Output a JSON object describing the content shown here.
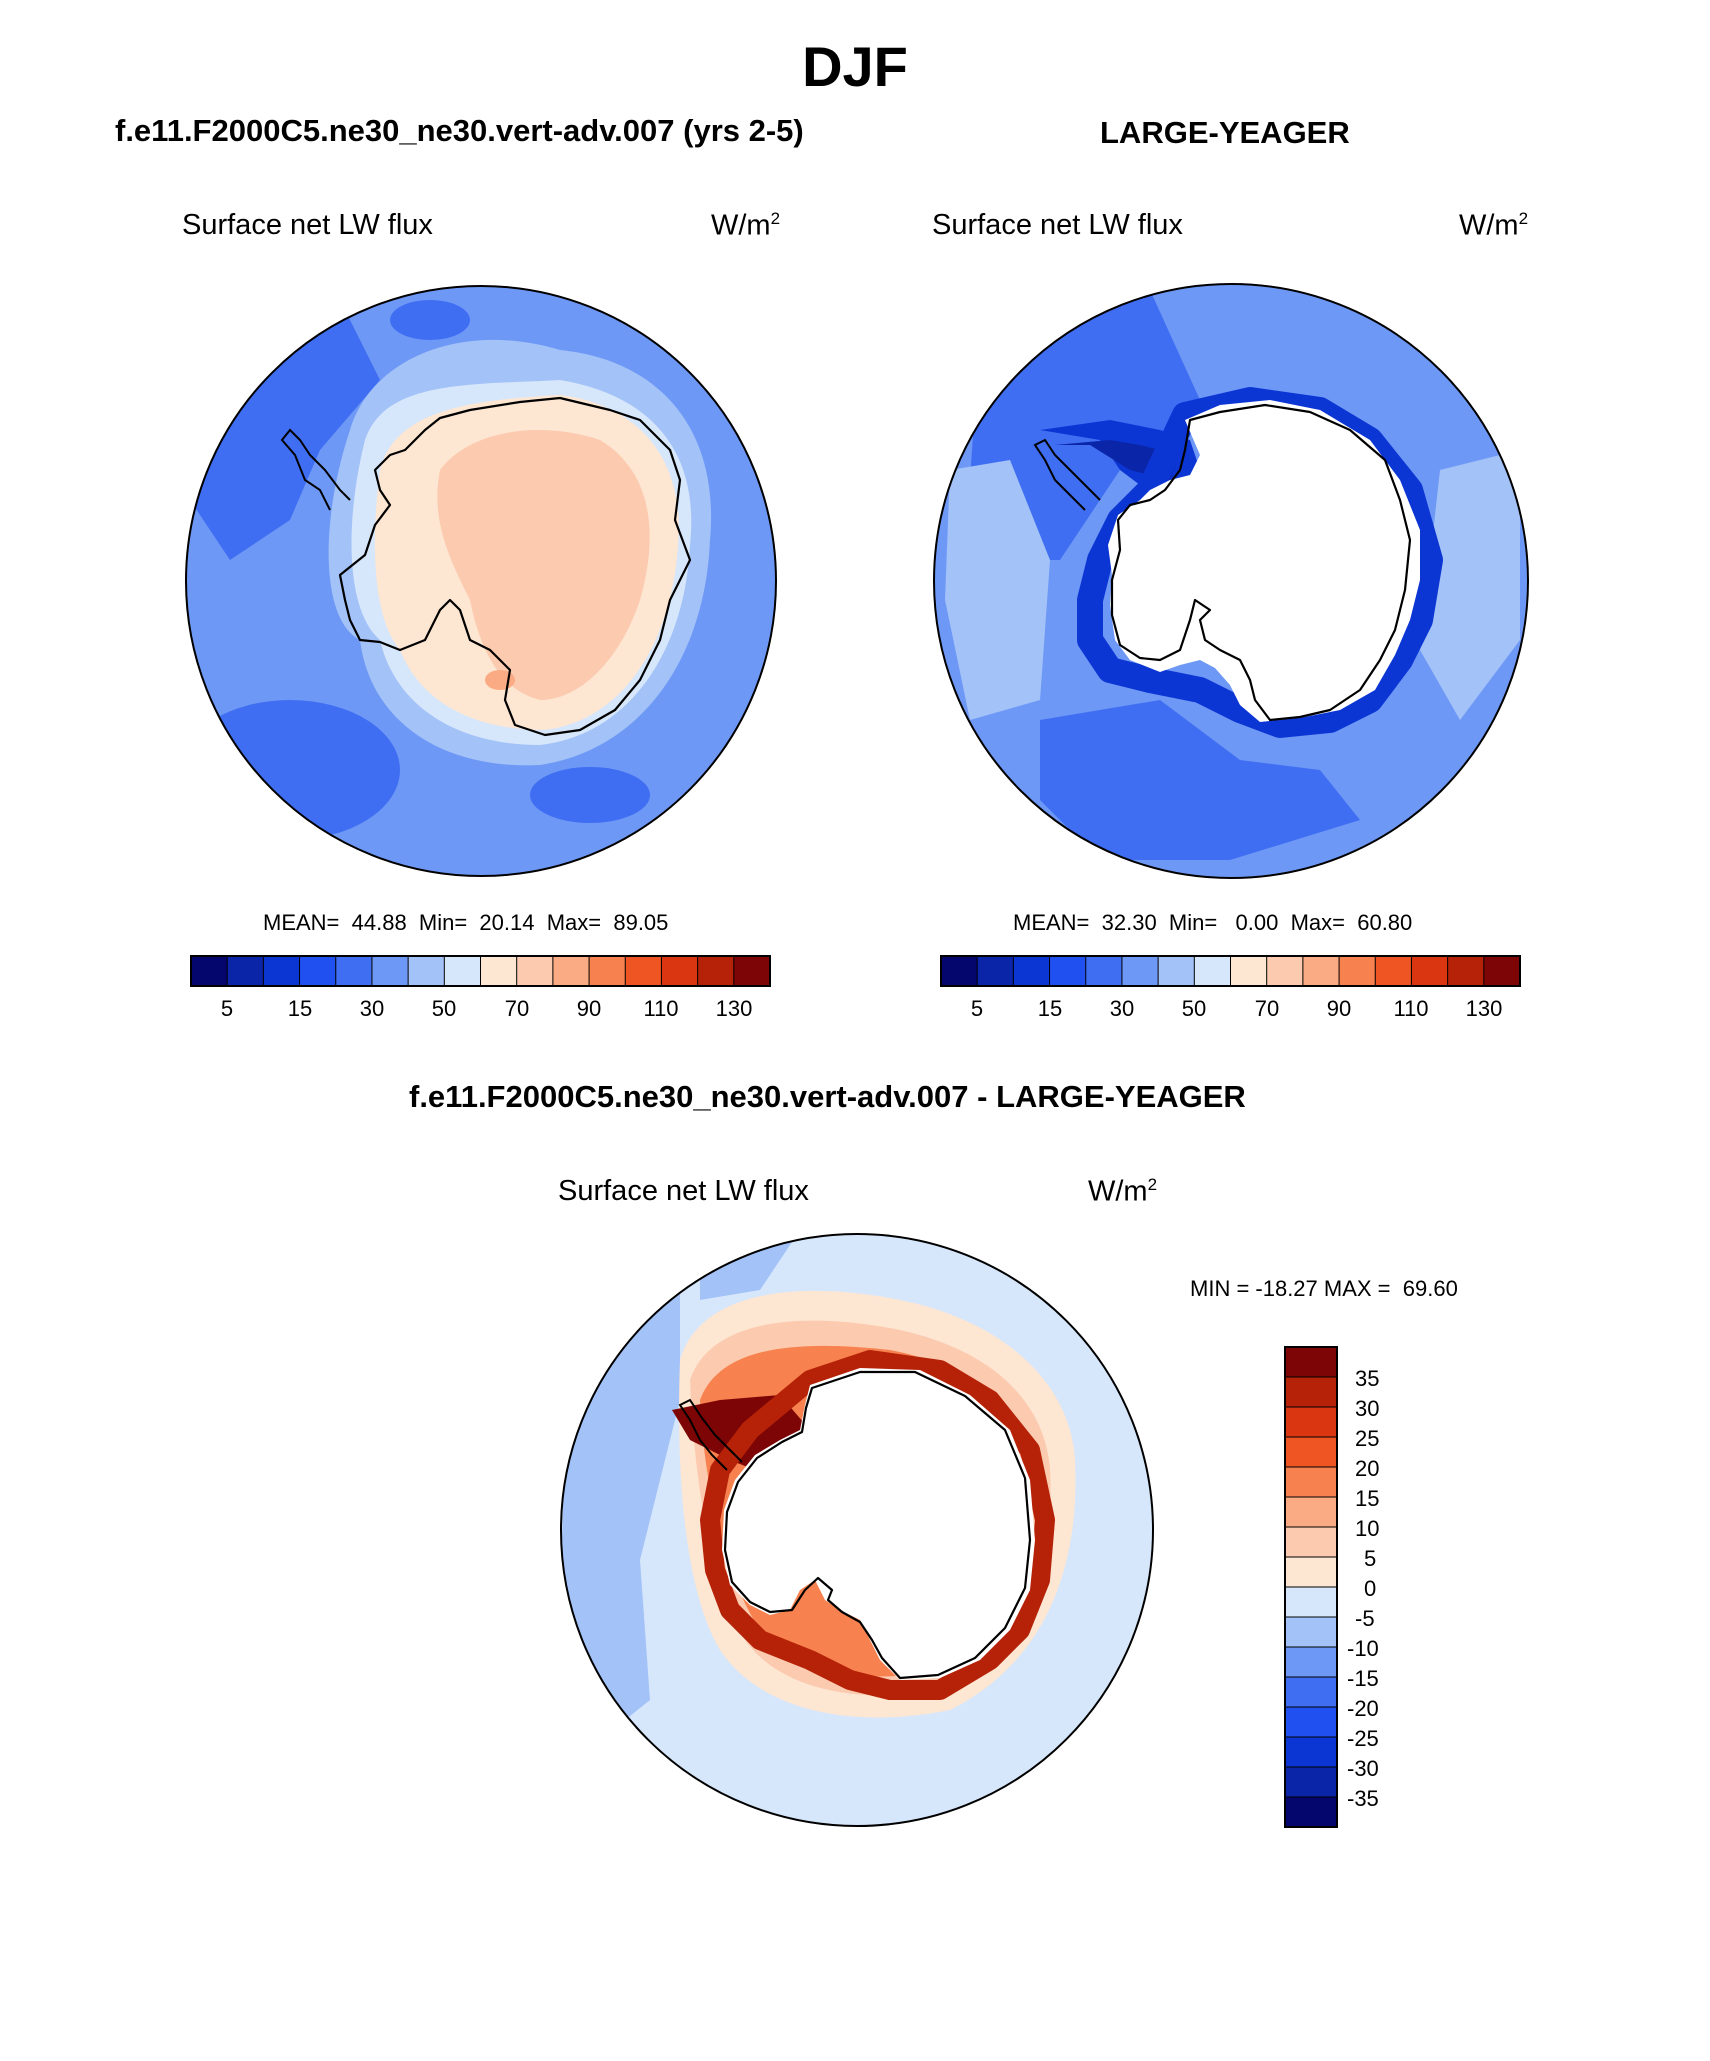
{
  "figure": {
    "title": "DJF",
    "panel_left_title": "f.e11.F2000C5.ne30_ne30.vert-adv.007 (yrs 2-5)",
    "panel_right_title": "LARGE-YEAGER",
    "diff_title": "f.e11.F2000C5.ne30_ne30.vert-adv.007 - LARGE-YEAGER"
  },
  "panels": [
    {
      "variable": "Surface net LW flux",
      "units": "W/m",
      "units_sup": "2",
      "stats_label": "MEAN=  44.88  Min=  20.14  Max=  89.05",
      "mean": 44.88,
      "min": 20.14,
      "max": 89.05
    },
    {
      "variable": "Surface net LW flux",
      "units": "W/m",
      "units_sup": "2",
      "stats_label": "MEAN=  32.30  Min=   0.00  Max=  60.80",
      "mean": 32.3,
      "min": 0.0,
      "max": 60.8
    },
    {
      "variable": "Surface net LW flux",
      "units": "W/m",
      "units_sup": "2",
      "stats_label": "MIN = -18.27 MAX =  69.60",
      "min": -18.27,
      "max": 69.6
    }
  ],
  "colorbar_main": {
    "colors": [
      "#05056e",
      "#0a25a8",
      "#0c36d4",
      "#2050f0",
      "#3f6ef2",
      "#6e98f5",
      "#a3c2f8",
      "#d7e7fb",
      "#fde6d2",
      "#fccaaf",
      "#fbab84",
      "#f8824f",
      "#ee5523",
      "#db3612",
      "#b52208",
      "#7e0505"
    ],
    "tick_labels": [
      "5",
      "15",
      "30",
      "50",
      "70",
      "90",
      "110",
      "130"
    ]
  },
  "colorbar_diff": {
    "colors_top_to_bottom": [
      "#7e0505",
      "#b52208",
      "#db3612",
      "#ee5523",
      "#f8824f",
      "#fbab84",
      "#fccaaf",
      "#fde6d2",
      "#d7e7fb",
      "#a3c2f8",
      "#6e98f5",
      "#3f6ef2",
      "#2050f0",
      "#0c36d4",
      "#0a25a8",
      "#05056e"
    ],
    "tick_labels": [
      "35",
      "30",
      "25",
      "20",
      "15",
      "10",
      "5",
      "0",
      "-5",
      "-10",
      "-15",
      "-20",
      "-25",
      "-30",
      "-35"
    ]
  },
  "chart_data": [
    {
      "type": "heatmap",
      "projection": "south-polar-stereographic",
      "title": "f.e11.F2000C5.ne30_ne30.vert-adv.007 (yrs 2-5)",
      "variable": "Surface net LW flux",
      "units": "W/m2",
      "levels": [
        5,
        10,
        15,
        20,
        30,
        40,
        50,
        60,
        70,
        80,
        90,
        100,
        110,
        120,
        130
      ],
      "stats": {
        "mean": 44.88,
        "min": 20.14,
        "max": 89.05
      }
    },
    {
      "type": "heatmap",
      "projection": "south-polar-stereographic",
      "title": "LARGE-YEAGER",
      "variable": "Surface net LW flux",
      "units": "W/m2",
      "levels": [
        5,
        10,
        15,
        20,
        30,
        40,
        50,
        60,
        70,
        80,
        90,
        100,
        110,
        120,
        130
      ],
      "stats": {
        "mean": 32.3,
        "min": 0.0,
        "max": 60.8
      }
    },
    {
      "type": "heatmap",
      "projection": "south-polar-stereographic",
      "title": "f.e11.F2000C5.ne30_ne30.vert-adv.007 - LARGE-YEAGER",
      "variable": "Surface net LW flux",
      "units": "W/m2",
      "levels": [
        -35,
        -30,
        -25,
        -20,
        -15,
        -10,
        -5,
        0,
        5,
        10,
        15,
        20,
        25,
        30,
        35
      ],
      "stats": {
        "min": -18.27,
        "max": 69.6
      }
    }
  ]
}
